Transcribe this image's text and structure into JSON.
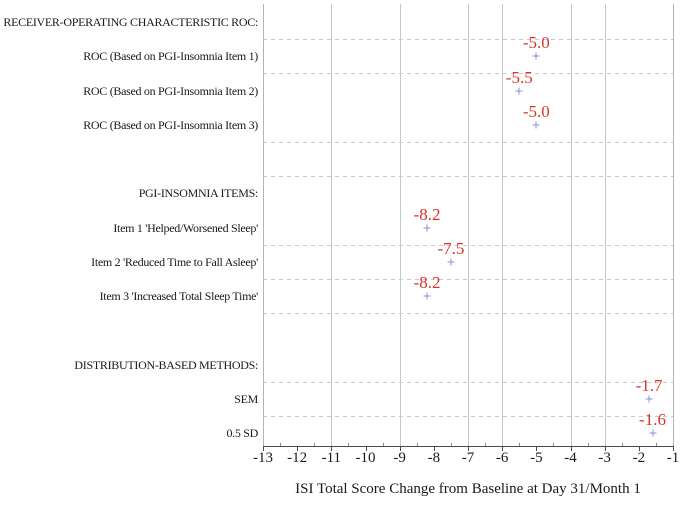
{
  "chart_data": {
    "type": "scatter",
    "title": "",
    "xlabel": "ISI Total Score Change from Baseline at Day 31/Month 1",
    "ylabel": "",
    "xlim": [
      -13,
      -1
    ],
    "x_ticks": [
      -13,
      -12,
      -11,
      -10,
      -9,
      -8,
      -7,
      -6,
      -5,
      -4,
      -3,
      -2,
      -1
    ],
    "x_minor_ticks": [
      -12.5,
      -11.5,
      -10.5,
      -9.5,
      -8.5,
      -7.5,
      -6.5,
      -5.5,
      -4.5,
      -3.5,
      -2.5,
      -1.5
    ],
    "vertical_gridlines": [
      -11,
      -9,
      -7,
      -6,
      -4,
      -3
    ],
    "grid": {
      "vertical": "solid",
      "horizontal": "dashed"
    },
    "legend_position": "none",
    "marker_symbol": "+",
    "rows": [
      {
        "label": "RECEIVER-OPERATING CHARACTERISTIC ROC:",
        "type": "header",
        "value": null,
        "display": ""
      },
      {
        "label": "ROC (Based on PGI-Insomnia Item 1)",
        "type": "item",
        "value": -5.0,
        "display": "-5.0"
      },
      {
        "label": "ROC (Based on PGI-Insomnia Item 2)",
        "type": "item",
        "value": -5.5,
        "display": "-5.5"
      },
      {
        "label": "ROC (Based on PGI-Insomnia Item 3)",
        "type": "item",
        "value": -5.0,
        "display": "-5.0"
      },
      {
        "label": "",
        "type": "spacer",
        "value": null,
        "display": ""
      },
      {
        "label": "PGI-INSOMNIA ITEMS:",
        "type": "header",
        "value": null,
        "display": ""
      },
      {
        "label": "Item 1 'Helped/Worsened Sleep'",
        "type": "item",
        "value": -8.2,
        "display": "-8.2"
      },
      {
        "label": "Item 2 'Reduced Time to Fall Asleep'",
        "type": "item",
        "value": -7.5,
        "display": "-7.5"
      },
      {
        "label": "Item 3 'Increased Total Sleep Time'",
        "type": "item",
        "value": -8.2,
        "display": "-8.2"
      },
      {
        "label": "",
        "type": "spacer",
        "value": null,
        "display": ""
      },
      {
        "label": "DISTRIBUTION-BASED METHODS:",
        "type": "header",
        "value": null,
        "display": ""
      },
      {
        "label": "SEM",
        "type": "item",
        "value": -1.7,
        "display": "-1.7"
      },
      {
        "label": "0.5 SD",
        "type": "item",
        "value": -1.6,
        "display": "-1.6"
      }
    ],
    "row_separators_after_index": [
      0,
      1,
      3,
      4,
      6,
      7,
      8,
      10,
      11
    ]
  },
  "colors": {
    "background": "#ffffff",
    "text": "#1a1a1a",
    "value_label": "#d93426",
    "marker": "#8a8fd6",
    "grid_solid": "#c6c6c6",
    "grid_dash": "#c9c9c9",
    "frame": "#b3b3b3",
    "axis": "#4a4a4a",
    "minor_tick": "#8c8c8c"
  }
}
